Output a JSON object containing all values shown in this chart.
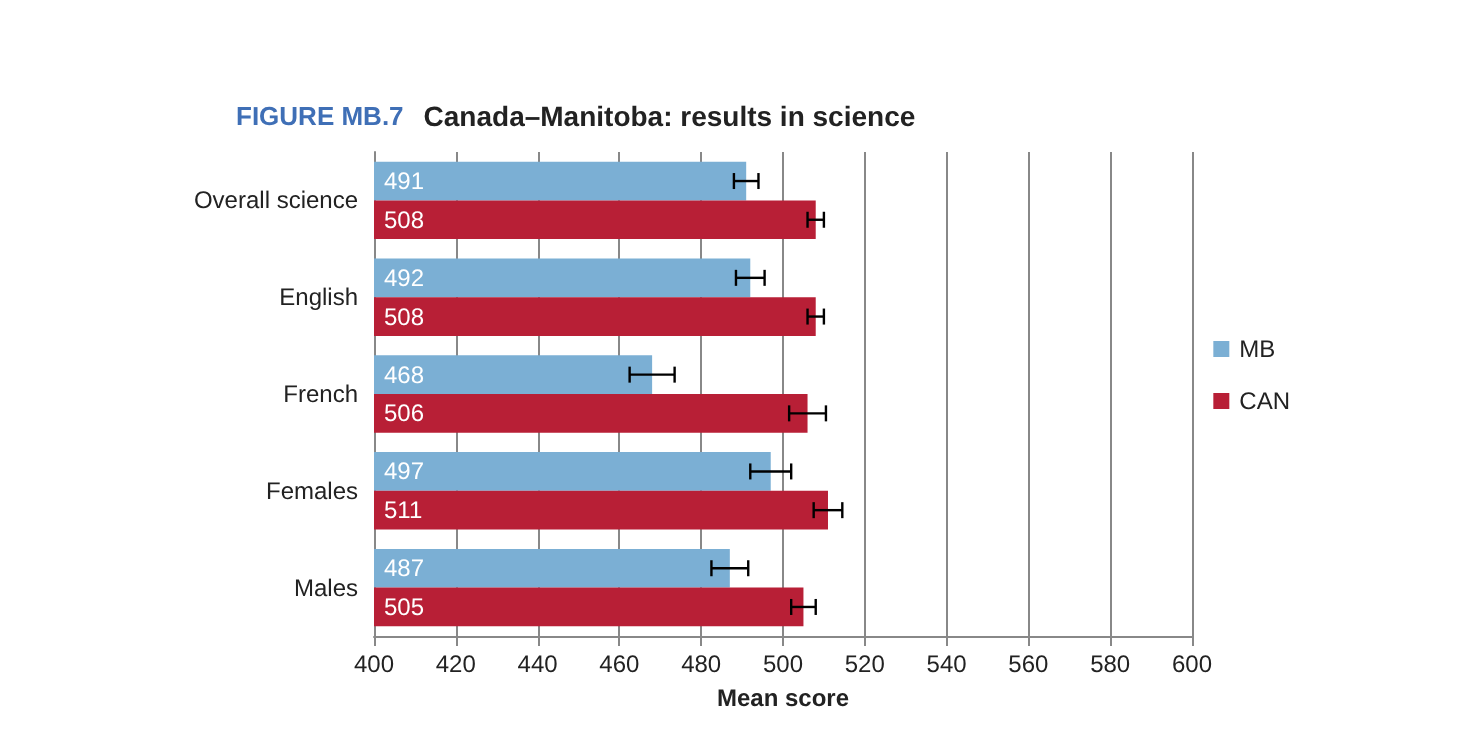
{
  "chart_data": {
    "type": "bar",
    "orientation": "horizontal",
    "title": "FIGURE MB.7",
    "subtitle": "Canada–Manitoba: results in science",
    "xlabel": "Mean score",
    "categories": [
      "Overall science",
      "English",
      "French",
      "Females",
      "Males"
    ],
    "series": [
      {
        "name": "MB",
        "color": "#7bafd4",
        "values": [
          491,
          492,
          468,
          497,
          487
        ],
        "errors": [
          3,
          3.5,
          5.5,
          5,
          4.5
        ]
      },
      {
        "name": "CAN",
        "color": "#b81f36",
        "values": [
          508,
          508,
          506,
          511,
          505
        ],
        "errors": [
          2,
          2,
          4.5,
          3.5,
          3
        ]
      }
    ],
    "xlim": [
      400,
      600
    ],
    "xticks": [
      400,
      420,
      440,
      460,
      480,
      500,
      520,
      540,
      560,
      580,
      600
    ],
    "grid": "x",
    "legend": "right",
    "data_labels": true
  }
}
